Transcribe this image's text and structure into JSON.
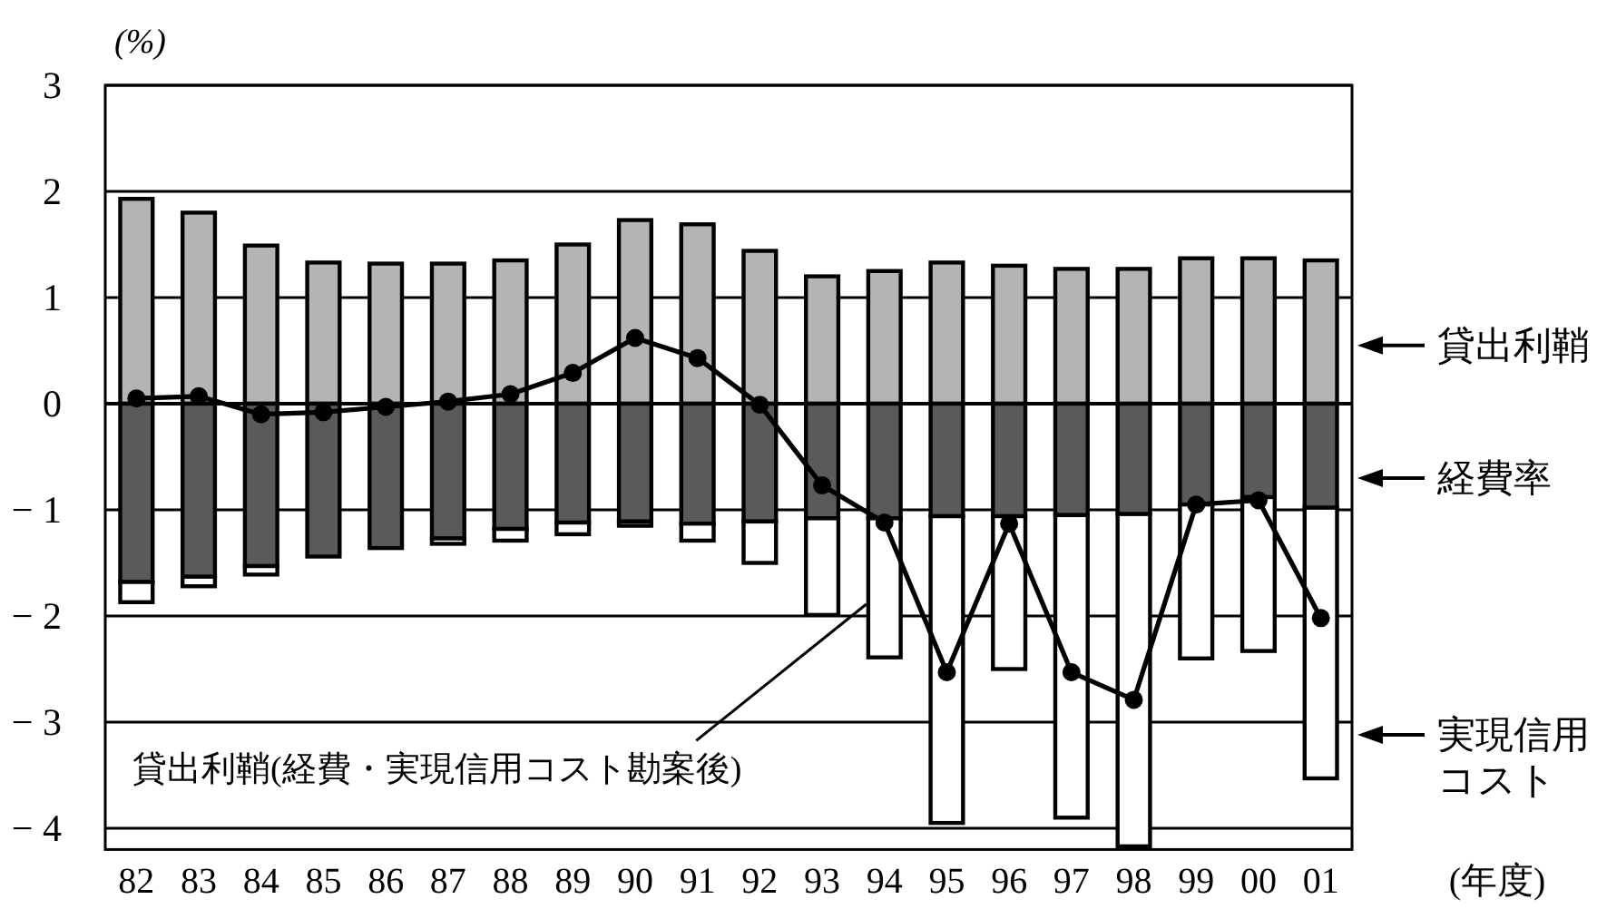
{
  "chart_data": {
    "type": "bar",
    "stacked": true,
    "ylabel": "(%)",
    "xlabel": "(年度)",
    "categories": [
      "82",
      "83",
      "84",
      "85",
      "86",
      "87",
      "88",
      "89",
      "90",
      "91",
      "92",
      "93",
      "94",
      "95",
      "96",
      "97",
      "98",
      "99",
      "00",
      "01"
    ],
    "ylim": [
      -4.2,
      3
    ],
    "yticks": [
      -4,
      -3,
      -2,
      -1,
      0,
      1,
      2,
      3
    ],
    "grid": "y",
    "legend": "right",
    "series": [
      {
        "name": "貸出利鞘",
        "color": "#b4b4b4",
        "values": [
          1.93,
          1.8,
          1.49,
          1.33,
          1.32,
          1.32,
          1.35,
          1.5,
          1.73,
          1.69,
          1.44,
          1.2,
          1.25,
          1.33,
          1.3,
          1.27,
          1.27,
          1.37,
          1.37,
          1.35
        ]
      },
      {
        "name": "経費率",
        "color": "#5a5a5a",
        "values": [
          -1.68,
          -1.63,
          -1.53,
          -1.44,
          -1.36,
          -1.27,
          -1.18,
          -1.12,
          -1.11,
          -1.13,
          -1.11,
          -1.08,
          -1.08,
          -1.06,
          -1.06,
          -1.05,
          -1.04,
          -0.95,
          -0.88,
          -0.98
        ]
      },
      {
        "name": "実現信用コスト",
        "color": "#ffffff",
        "values": [
          -0.19,
          -0.09,
          -0.08,
          0,
          0,
          -0.05,
          -0.11,
          -0.11,
          -0.04,
          -0.16,
          -0.39,
          -0.91,
          -1.31,
          -2.89,
          -1.44,
          -2.85,
          -3.13,
          -1.45,
          -1.45,
          -2.55
        ]
      },
      {
        "name": "貸出利鞘(経費・実現信用コスト勘案後)",
        "type": "line",
        "color": "#000000",
        "marker": "circle",
        "values": [
          0.05,
          0.07,
          -0.1,
          -0.08,
          -0.03,
          0.02,
          0.09,
          0.29,
          0.62,
          0.43,
          -0.01,
          -0.77,
          -1.12,
          -2.53,
          -1.13,
          -2.53,
          -2.79,
          -0.95,
          -0.91,
          -2.02
        ]
      }
    ]
  }
}
